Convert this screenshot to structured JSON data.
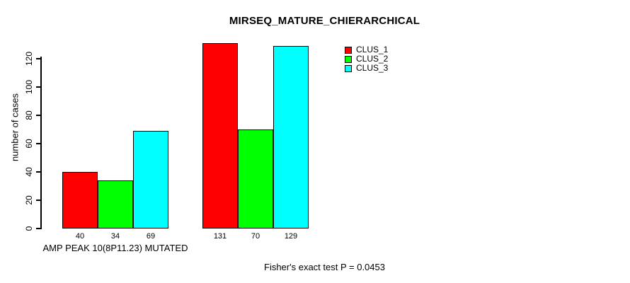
{
  "chart_data": {
    "type": "bar",
    "title": "MIRSEQ_MATURE_CHIERARCHICAL",
    "ylabel": "number of cases",
    "xlabel": "AMP PEAK 10(8P11.23) MUTATED",
    "annotation": "Fisher's exact test P = 0.0453",
    "ylim": [
      0,
      120
    ],
    "yticks": [
      0,
      20,
      40,
      60,
      80,
      100,
      120
    ],
    "grid": false,
    "legend_position": "top-right",
    "categories": [
      "AMP PEAK 10(8P11.23) MUTATED",
      ""
    ],
    "series": [
      {
        "name": "CLUS_1",
        "color": "#FF0000",
        "values": [
          40,
          131
        ]
      },
      {
        "name": "CLUS_2",
        "color": "#00FF00",
        "values": [
          34,
          70
        ]
      },
      {
        "name": "CLUS_3",
        "color": "#00FFFF",
        "values": [
          69,
          129
        ]
      }
    ],
    "bar_value_labels": [
      [
        "40",
        "34",
        "69"
      ],
      [
        "131",
        "70",
        "129"
      ]
    ]
  },
  "colors": {
    "background": "#FFFFFF",
    "axis": "#000000",
    "text": "#000000"
  }
}
